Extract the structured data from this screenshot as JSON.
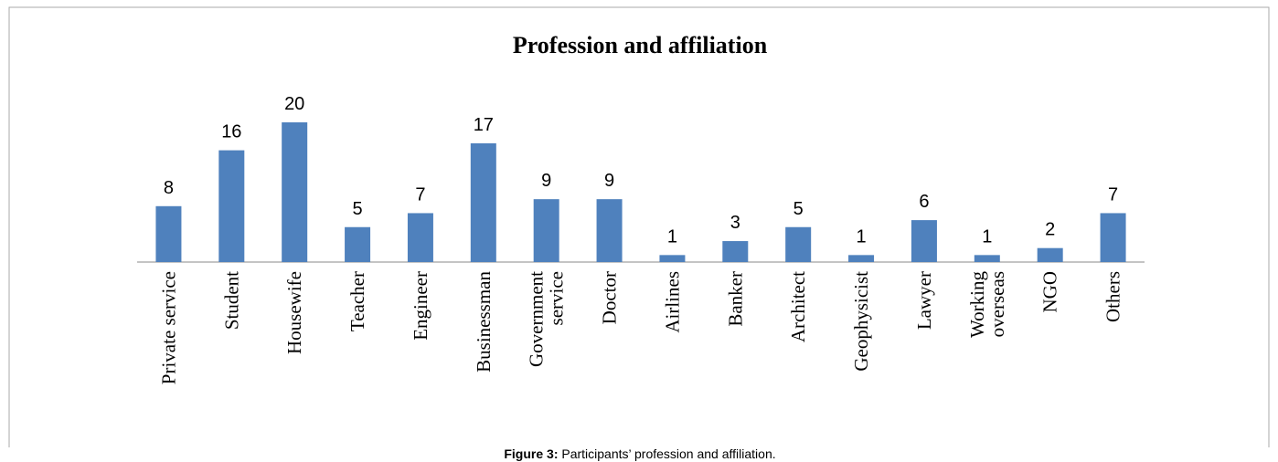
{
  "chart_data": {
    "type": "bar",
    "title": "Profession and affiliation",
    "categories": [
      "Private service",
      "Student",
      "Housewife",
      "Teacher",
      "Engineer",
      "Businessman",
      [
        "Government",
        "service"
      ],
      "Doctor",
      "Airlines",
      "Banker",
      "Architect",
      "Geophysicist",
      "Lawyer",
      [
        "Working",
        "overseas"
      ],
      "NGO",
      "Others"
    ],
    "values": [
      8,
      16,
      20,
      5,
      7,
      17,
      9,
      9,
      1,
      3,
      5,
      1,
      6,
      1,
      2,
      7
    ],
    "color": "#4f81bd"
  },
  "caption": {
    "label": "Figure 3:",
    "text": "Participants’ profession and affiliation."
  }
}
